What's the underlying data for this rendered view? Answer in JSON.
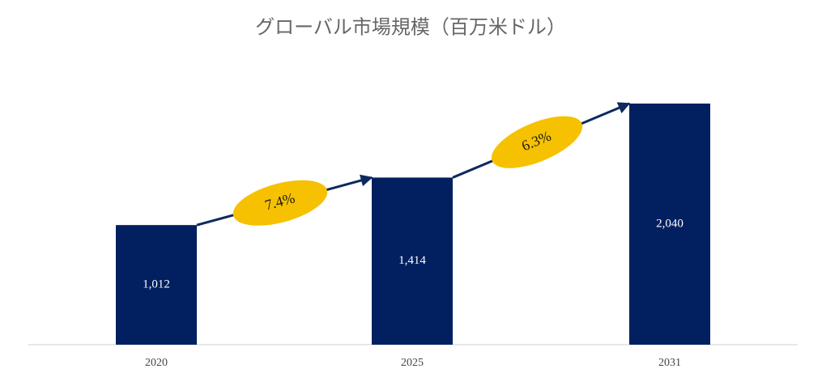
{
  "chart_data": {
    "type": "bar",
    "title": "グローバル市場規模（百万米ドル）",
    "categories": [
      "2020",
      "2025",
      "2031"
    ],
    "values": [
      1012,
      1414,
      2040
    ],
    "value_labels": [
      "1,012",
      "1,414",
      "2,040"
    ],
    "color": "#022060",
    "annotations": [
      "7.4%",
      "6.3%"
    ]
  }
}
